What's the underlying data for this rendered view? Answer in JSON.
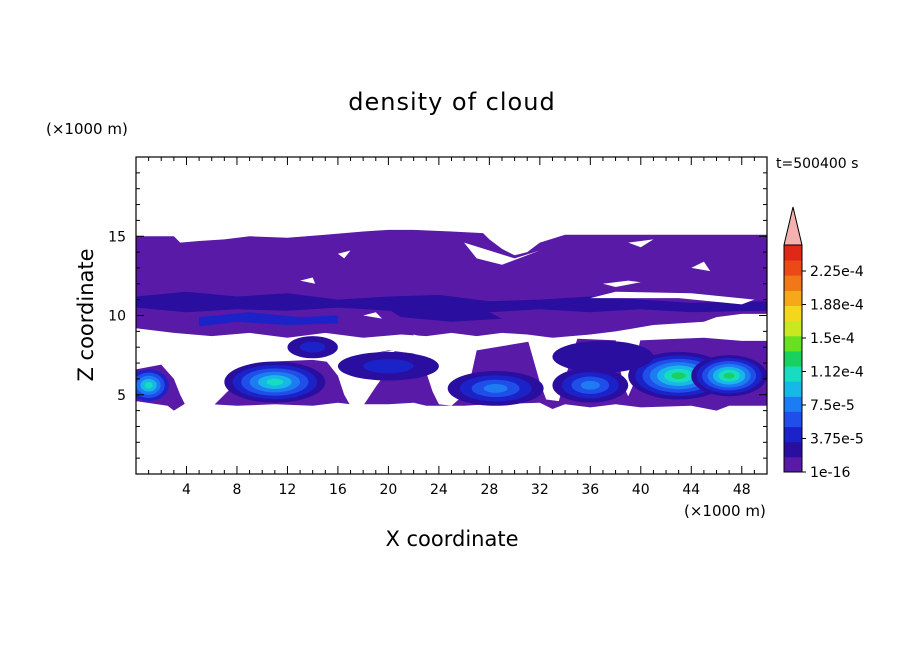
{
  "chart_data": {
    "type": "heatmap",
    "title": "density of cloud",
    "xlabel": "X coordinate",
    "ylabel": "Z coordinate",
    "x_unit": "(×1000 m)",
    "z_unit": "(×1000 m)",
    "time_label": "t=500400 s",
    "xlim": [
      0,
      50
    ],
    "ylim": [
      0,
      20
    ],
    "xticks": [
      4,
      8,
      12,
      16,
      20,
      24,
      28,
      32,
      36,
      40,
      44,
      48
    ],
    "yticks": [
      5,
      10,
      15
    ],
    "colorbar": {
      "labels": [
        "2.25e-4",
        "1.88e-4",
        "1.5e-4",
        "1.12e-4",
        "7.5e-5",
        "3.75e-5",
        "1e-16"
      ],
      "colors": [
        "#5a1aa8",
        "#2a0ea0",
        "#1a22c8",
        "#1f4ee8",
        "#1e7cf2",
        "#17b8e8",
        "#18dcc0",
        "#19d060",
        "#66e020",
        "#c8e820",
        "#f2d81a",
        "#f5a81a",
        "#f07818",
        "#ea4a18",
        "#e02818"
      ],
      "overflow_color": "#f5b0b0"
    },
    "cloud_layers": [
      {
        "name": "upper cloud layer",
        "level": "1e-16",
        "z_range": [
          8.5,
          15.5
        ],
        "x_range": [
          0,
          50
        ]
      },
      {
        "name": "lower cloud layer",
        "level": "1e-16",
        "z_range": [
          4,
          7.5
        ],
        "x_range": [
          0,
          50
        ]
      },
      {
        "name": "peak core near x=42",
        "level": "1.5e-4",
        "x": 42,
        "z": 6.5
      },
      {
        "name": "peak core near x=46",
        "level": "1.5e-4",
        "x": 46,
        "z": 6.5
      },
      {
        "name": "core near x=11",
        "level": "1.12e-4",
        "x": 11,
        "z": 6
      },
      {
        "name": "core near x=28",
        "level": "7.5e-5",
        "x": 28,
        "z": 5.5
      },
      {
        "name": "core near x=1",
        "level": "1.12e-4",
        "x": 1,
        "z": 5.8
      }
    ]
  }
}
